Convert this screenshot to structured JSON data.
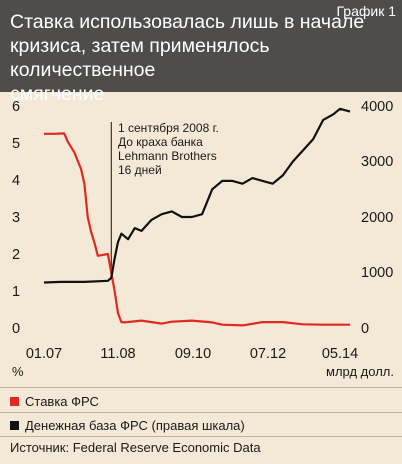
{
  "header": {
    "title_line1": "Ставка использовалась лишь в начале",
    "title_line2": "кризиса, затем применялось количественное",
    "title_line3": "смягчение",
    "chart_number": "График 1"
  },
  "legend": {
    "rate_label": "Ставка ФРС",
    "base_label": "Денежная база ФРС (правая шкала)"
  },
  "source": "Источник: Federal Reserve Economic Data",
  "chart_data": {
    "type": "line",
    "x_tick_labels": [
      "01.07",
      "11.08",
      "09.10",
      "07.12",
      "05.14"
    ],
    "x_tick_dates": [
      "2007-01",
      "2008-11",
      "2010-09",
      "2012-07",
      "2014-05"
    ],
    "left_axis": {
      "unit": "%",
      "ticks": [
        "0",
        "1",
        "2",
        "3",
        "4",
        "5",
        "6"
      ],
      "ylim": [
        0,
        6
      ]
    },
    "right_axis": {
      "unit": "млрд долл.",
      "ticks": [
        "0",
        "1000",
        "2000",
        "3000",
        "4000"
      ],
      "ylim": [
        0,
        4000
      ]
    },
    "series": [
      {
        "name": "Ставка ФРС",
        "axis": "left",
        "color": "#e02a1f",
        "x": [
          "2007-01",
          "2007-04",
          "2007-07",
          "2007-08",
          "2007-10",
          "2007-12",
          "2008-01",
          "2008-02",
          "2008-03",
          "2008-04",
          "2008-05",
          "2008-08",
          "2008-10",
          "2008-11",
          "2008-12",
          "2009-01",
          "2009-06",
          "2009-12",
          "2010-03",
          "2010-09",
          "2011-03",
          "2011-06",
          "2011-12",
          "2012-06",
          "2012-12",
          "2013-06",
          "2013-12",
          "2014-05",
          "2014-08"
        ],
        "y": [
          5.25,
          5.25,
          5.26,
          5.05,
          4.75,
          4.3,
          3.9,
          3.0,
          2.6,
          2.3,
          1.95,
          2.0,
          1.0,
          0.4,
          0.16,
          0.15,
          0.2,
          0.12,
          0.17,
          0.2,
          0.15,
          0.09,
          0.07,
          0.16,
          0.16,
          0.1,
          0.09,
          0.09,
          0.09
        ]
      },
      {
        "name": "Денежная база ФРС (правая шкала)",
        "axis": "right",
        "color": "#111111",
        "x": [
          "2007-01",
          "2007-06",
          "2008-01",
          "2008-08",
          "2008-09",
          "2008-10",
          "2008-11",
          "2008-12",
          "2009-02",
          "2009-04",
          "2009-06",
          "2009-09",
          "2009-12",
          "2010-03",
          "2010-06",
          "2010-09",
          "2010-12",
          "2011-03",
          "2011-06",
          "2011-09",
          "2011-12",
          "2012-03",
          "2012-06",
          "2012-09",
          "2012-12",
          "2013-03",
          "2013-06",
          "2013-09",
          "2013-12",
          "2014-03",
          "2014-05",
          "2014-08"
        ],
        "y": [
          820,
          830,
          830,
          850,
          905,
          1250,
          1550,
          1700,
          1600,
          1800,
          1750,
          1950,
          2050,
          2100,
          2000,
          2000,
          2050,
          2500,
          2650,
          2650,
          2600,
          2700,
          2650,
          2600,
          2750,
          3000,
          3200,
          3400,
          3750,
          3850,
          3950,
          3900
        ]
      }
    ],
    "annotation": {
      "date": "2008-09",
      "lines": [
        "1 сентября 2008 г.",
        "До краха банка",
        "Lehmann Brothers",
        "16 дней"
      ]
    },
    "grid": false,
    "legend_position": "bottom"
  }
}
